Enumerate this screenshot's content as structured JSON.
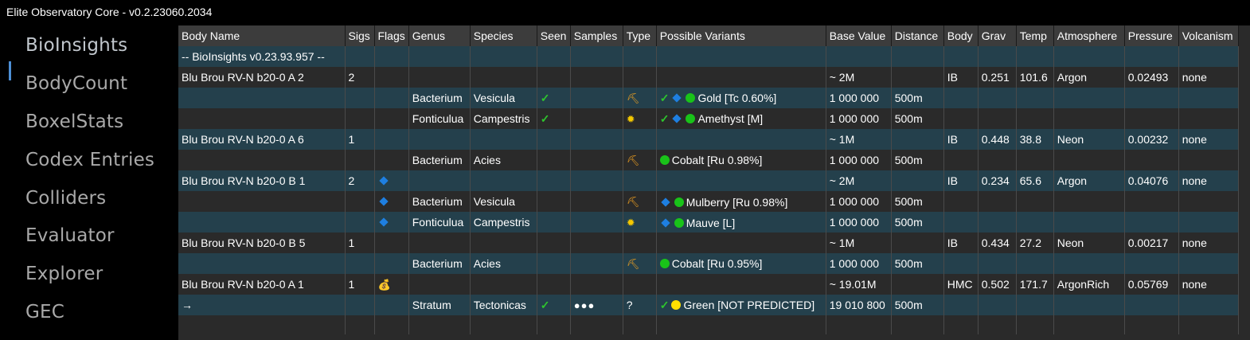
{
  "app": {
    "title": "Elite Observatory Core - v0.2.23060.2034"
  },
  "nav": {
    "active": 0,
    "items": [
      {
        "label": "BioInsights"
      },
      {
        "label": "BodyCount"
      },
      {
        "label": "BoxelStats"
      },
      {
        "label": "Codex Entries"
      },
      {
        "label": "Colliders"
      },
      {
        "label": "Evaluator"
      },
      {
        "label": "Explorer"
      },
      {
        "label": "GEC"
      }
    ]
  },
  "grid": {
    "columns": [
      "Body Name",
      "Sigs",
      "Flags",
      "Genus",
      "Species",
      "Seen",
      "Samples",
      "Type",
      "Possible Variants",
      "Base Value",
      "Distance",
      "Body",
      "Grav",
      "Temp",
      "Atmosphere",
      "Pressure",
      "Volcanism"
    ],
    "rows": [
      {
        "body_name": "-- BioInsights v0.23.93.957  --"
      },
      {
        "body_name": "Blu Brou RV-N b20-0 A 2",
        "sigs": "2",
        "base_value": "~ 2M",
        "body": "IB",
        "grav": "0.251",
        "temp": "101.6",
        "atmosphere": "Argon",
        "pressure": "0.02493",
        "volcanism": "none"
      },
      {
        "genus": "Bacterium",
        "species": "Vesicula",
        "seen": "check",
        "type_icon": "pickaxe-icon",
        "variant": {
          "check": true,
          "diamond": true,
          "dot": "green",
          "text": "Gold [Tc 0.60%]"
        },
        "base_value": "1 000 000",
        "distance": "500m"
      },
      {
        "genus": "Fonticulua",
        "species": "Campestris",
        "seen": "check",
        "type_icon": "sun-icon",
        "variant": {
          "check": true,
          "diamond": true,
          "dot": "green",
          "text": "Amethyst [M]"
        },
        "base_value": "1 000 000",
        "distance": "500m"
      },
      {
        "body_name": "Blu Brou RV-N b20-0 A 6",
        "sigs": "1",
        "base_value": "~ 1M",
        "body": "IB",
        "grav": "0.448",
        "temp": "38.8",
        "atmosphere": "Neon",
        "pressure": "0.00232",
        "volcanism": "none"
      },
      {
        "genus": "Bacterium",
        "species": "Acies",
        "type_icon": "pickaxe-icon",
        "variant": {
          "dot": "green",
          "text": "Cobalt [Ru 0.98%]"
        },
        "base_value": "1 000 000",
        "distance": "500m"
      },
      {
        "body_name": "Blu Brou RV-N b20-0 B 1",
        "sigs": "2",
        "flag": "diamond",
        "base_value": "~ 2M",
        "body": "IB",
        "grav": "0.234",
        "temp": "65.6",
        "atmosphere": "Argon",
        "pressure": "0.04076",
        "volcanism": "none"
      },
      {
        "flag": "diamond",
        "genus": "Bacterium",
        "species": "Vesicula",
        "type_icon": "pickaxe-icon",
        "variant": {
          "diamond": true,
          "dot": "green",
          "text": "Mulberry [Ru 0.98%]"
        },
        "base_value": "1 000 000",
        "distance": "500m"
      },
      {
        "flag": "diamond",
        "genus": "Fonticulua",
        "species": "Campestris",
        "type_icon": "sun-icon",
        "variant": {
          "diamond": true,
          "dot": "green",
          "text": "Mauve [L]"
        },
        "base_value": "1 000 000",
        "distance": "500m"
      },
      {
        "body_name": "Blu Brou RV-N b20-0 B 5",
        "sigs": "1",
        "base_value": "~ 1M",
        "body": "IB",
        "grav": "0.434",
        "temp": "27.2",
        "atmosphere": "Neon",
        "pressure": "0.00217",
        "volcanism": "none"
      },
      {
        "genus": "Bacterium",
        "species": "Acies",
        "type_icon": "pickaxe-icon",
        "variant": {
          "dot": "green",
          "text": "Cobalt [Ru 0.95%]"
        },
        "base_value": "1 000 000",
        "distance": "500m"
      },
      {
        "body_name": "Blu Brou RV-N b20-0 A 1",
        "sigs": "1",
        "flag": "money",
        "base_value": "~ 19.01M",
        "body": "HMC",
        "grav": "0.502",
        "temp": "171.7",
        "atmosphere": "ArgonRich",
        "pressure": "0.05769",
        "volcanism": "none"
      },
      {
        "body_name": "→",
        "genus": "Stratum",
        "species": "Tectonicas",
        "seen": "check",
        "samples": "●●●",
        "type_text": "?",
        "variant": {
          "check": true,
          "dot": "yellow",
          "text": "Green [NOT PREDICTED]"
        },
        "base_value": "19 010 800",
        "distance": "500m"
      },
      {}
    ]
  }
}
